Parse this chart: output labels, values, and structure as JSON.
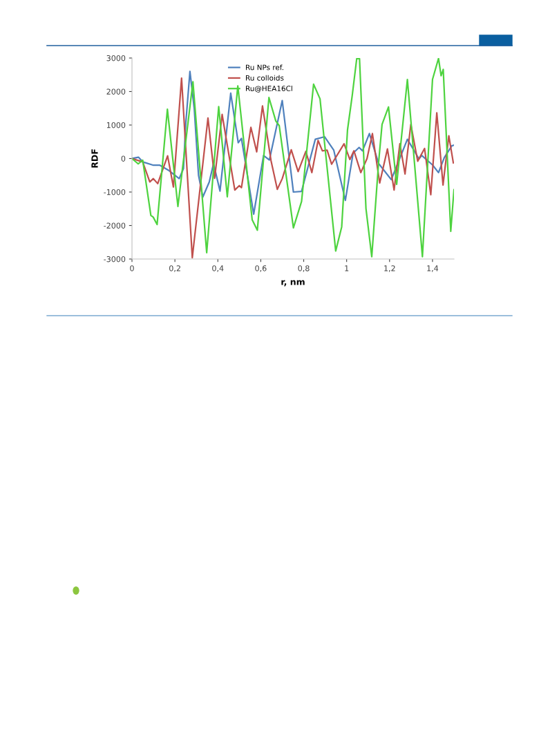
{
  "chart_data": {
    "type": "line",
    "xlabel": "r, nm",
    "ylabel": "RDF",
    "xlim": [
      0,
      1.5
    ],
    "xticks": [
      0,
      {
        "value": 0.2,
        "label": "0,2"
      },
      {
        "value": 0.4,
        "label": "0,4"
      },
      {
        "value": 0.6,
        "label": "0,6"
      },
      {
        "value": 0.8,
        "label": "0,8"
      },
      1,
      {
        "value": 1.2,
        "label": "1,2"
      },
      {
        "value": 1.4,
        "label": "1,4"
      }
    ],
    "ylim": [
      -3000,
      3000
    ],
    "yticks": [
      -3000,
      -2000,
      -1000,
      0,
      1000,
      2000,
      3000
    ],
    "grid": false,
    "legend": "top",
    "marker": "none",
    "line_style": "solid",
    "series": [
      {
        "name": "Ru NPs ref.",
        "color": "#4f81bd",
        "x": [
          0,
          0.03,
          0.05,
          0.1,
          0.13,
          0.17,
          0.2,
          0.22,
          0.24,
          0.25,
          0.27,
          0.29,
          0.31,
          0.33,
          0.36,
          0.38,
          0.41,
          0.46,
          0.495,
          0.51,
          0.567,
          0.613,
          0.64,
          0.7,
          0.752,
          0.79,
          0.854,
          0.897,
          0.94,
          0.994,
          1.03,
          1.058,
          1.074,
          1.106,
          1.149,
          1.208,
          1.283,
          1.337,
          1.35,
          1.4,
          1.428,
          1.455,
          1.49,
          1.5
        ],
        "values": [
          0,
          40,
          -100,
          -200,
          -200,
          -350,
          -500,
          -600,
          -300,
          1000,
          2600,
          1500,
          -500,
          -1150,
          -700,
          -150,
          -970,
          1950,
          470,
          600,
          -1660,
          90,
          -45,
          1730,
          -1000,
          -980,
          575,
          650,
          250,
          -1250,
          160,
          330,
          230,
          745,
          -150,
          -630,
          575,
          -10,
          90,
          -190,
          -420,
          30,
          380,
          400
        ]
      },
      {
        "name": "Ru colloids",
        "color": "#c0504d",
        "x": [
          0,
          0.05,
          0.083,
          0.099,
          0.12,
          0.166,
          0.193,
          0.231,
          0.281,
          0.354,
          0.385,
          0.42,
          0.479,
          0.5,
          0.51,
          0.554,
          0.581,
          0.608,
          0.648,
          0.677,
          0.7,
          0.742,
          0.774,
          0.81,
          0.838,
          0.867,
          0.887,
          0.909,
          0.93,
          0.988,
          1.015,
          1.034,
          1.066,
          1.095,
          1.12,
          1.154,
          1.19,
          1.221,
          1.248,
          1.272,
          1.299,
          1.331,
          1.363,
          1.392,
          1.42,
          1.449,
          1.476,
          1.497
        ],
        "values": [
          0,
          -100,
          -700,
          -600,
          -750,
          80,
          -850,
          2400,
          -2960,
          1210,
          -590,
          1315,
          -940,
          -810,
          -870,
          930,
          200,
          1570,
          -70,
          -920,
          -600,
          260,
          -390,
          215,
          -420,
          540,
          230,
          250,
          -170,
          440,
          -30,
          230,
          -420,
          0,
          745,
          -730,
          285,
          -940,
          440,
          -460,
          1020,
          -80,
          300,
          -1080,
          1365,
          -790,
          680,
          -130
        ]
      },
      {
        "name": "Ru@HEA16Cl",
        "color": "#4ed33f",
        "x": [
          0,
          0.029,
          0.05,
          0.088,
          0.099,
          0.117,
          0.165,
          0.214,
          0.284,
          0.348,
          0.404,
          0.444,
          0.493,
          0.56,
          0.584,
          0.638,
          0.67,
          0.686,
          0.752,
          0.79,
          0.846,
          0.876,
          0.949,
          0.977,
          1.004,
          1.026,
          1.047,
          1.06,
          1.09,
          1.117,
          1.149,
          1.165,
          1.195,
          1.233,
          1.283,
          1.353,
          1.4,
          1.428,
          1.44,
          1.45,
          1.485,
          1.5
        ],
        "values": [
          0,
          -160,
          -50,
          -1700,
          -1750,
          -1970,
          1470,
          -1430,
          2290,
          -2810,
          1550,
          -1140,
          2170,
          -1830,
          -2140,
          1820,
          1120,
          980,
          -2070,
          -1280,
          2220,
          1780,
          -2760,
          -2040,
          850,
          1880,
          2980,
          2980,
          -1490,
          -2930,
          -110,
          1020,
          1540,
          -770,
          2360,
          -2930,
          2360,
          2990,
          2470,
          2660,
          -2175,
          -930
        ]
      }
    ]
  }
}
